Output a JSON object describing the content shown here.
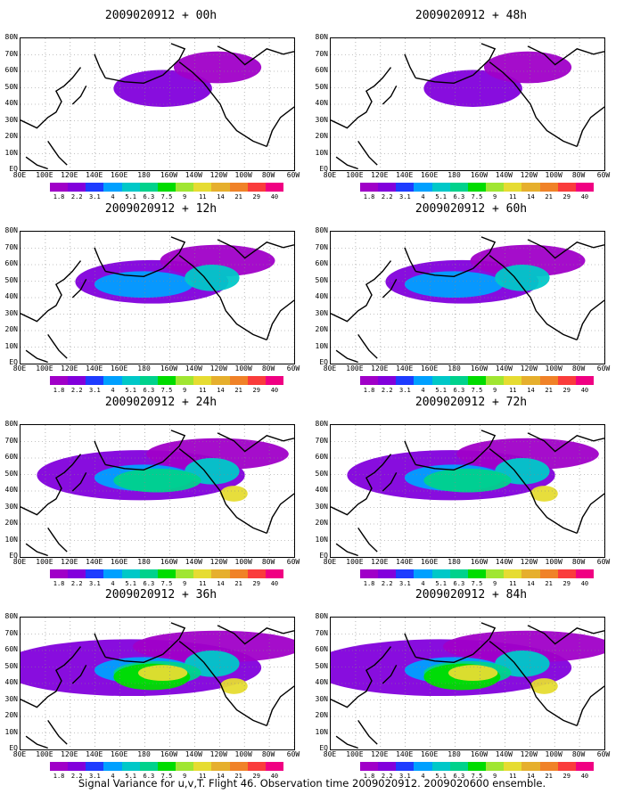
{
  "figure": {
    "caption": "Signal Variance for u,v,T. Flight 46. Observation time 2009020912. 2009020600 ensemble."
  },
  "axes": {
    "lat_labels": [
      "80N",
      "70N",
      "60N",
      "50N",
      "40N",
      "30N",
      "20N",
      "10N",
      "EQ"
    ],
    "lon_labels": [
      "80E",
      "100E",
      "120E",
      "140E",
      "160E",
      "180",
      "160W",
      "140W",
      "120W",
      "100W",
      "80W",
      "60W"
    ]
  },
  "colorbar": {
    "labels": [
      "1.8",
      "2.2",
      "3.1",
      "4",
      "5.1",
      "6.3",
      "7.5",
      "9",
      "11",
      "14",
      "21",
      "29",
      "40"
    ],
    "colors": [
      "#a000c8",
      "#8200dc",
      "#1e3cff",
      "#00a0ff",
      "#00c8c8",
      "#00d28c",
      "#00dc00",
      "#a0e632",
      "#e6dc32",
      "#e6af2d",
      "#f08228",
      "#fa3c3c",
      "#f00082"
    ]
  },
  "panels": [
    {
      "title": "2009020912 + 00h"
    },
    {
      "title": "2009020912 + 48h"
    },
    {
      "title": "2009020912 + 12h"
    },
    {
      "title": "2009020912 + 60h"
    },
    {
      "title": "2009020912 + 24h"
    },
    {
      "title": "2009020912 + 72h"
    },
    {
      "title": "2009020912 + 36h"
    },
    {
      "title": "2009020912 + 84h"
    }
  ]
}
